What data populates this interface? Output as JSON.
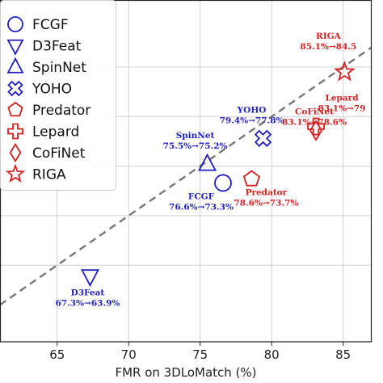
{
  "chart_data": {
    "type": "scatter",
    "title": "",
    "xlabel": "FMR on 3DLoMatch (%)",
    "ylabel": "",
    "xlim": [
      61,
      87
    ],
    "x_ticks": [
      "65",
      "70",
      "75",
      "80",
      "85"
    ],
    "grid": true,
    "legend": "top-left",
    "colors": {
      "blue": "#1f1fbf",
      "red": "#d42020",
      "diagonal": "#777777"
    },
    "series": [
      {
        "name": "FCGF",
        "marker": "circle",
        "color": "blue",
        "x": 76.6,
        "y": 73.3,
        "annotation_name": "FCGF",
        "annotation_value": "76.6%→73.3%"
      },
      {
        "name": "D3Feat",
        "marker": "triangle-down",
        "color": "blue",
        "x": 67.3,
        "y": 63.9,
        "annotation_name": "D3Feat",
        "annotation_value": "67.3%→63.9%"
      },
      {
        "name": "SpinNet",
        "marker": "triangle-up",
        "color": "blue",
        "x": 75.5,
        "y": 75.2,
        "annotation_name": "SpinNet",
        "annotation_value": "75.5%→75.2%"
      },
      {
        "name": "YOHO",
        "marker": "x",
        "color": "blue",
        "x": 79.4,
        "y": 77.8,
        "annotation_name": "YOHO",
        "annotation_value": "79.4%→77.8%"
      },
      {
        "name": "Predator",
        "marker": "pentagon",
        "color": "red",
        "x": 78.6,
        "y": 73.7,
        "annotation_name": "Predator",
        "annotation_value": "78.6%→73.7%"
      },
      {
        "name": "Lepard",
        "marker": "plus",
        "color": "red",
        "x": 83.1,
        "y": 79.0,
        "annotation_name": "Lepard",
        "annotation_value": "83.1%→79"
      },
      {
        "name": "CoFiNet",
        "marker": "diamond",
        "color": "red",
        "x": 83.1,
        "y": 78.6,
        "annotation_name": "CoFiNet",
        "annotation_value": "83.1%→78.6%"
      },
      {
        "name": "RIGA",
        "marker": "star",
        "color": "red",
        "x": 85.1,
        "y": 84.5,
        "annotation_name": "RIGA",
        "annotation_value": "85.1%→84.5"
      }
    ]
  }
}
